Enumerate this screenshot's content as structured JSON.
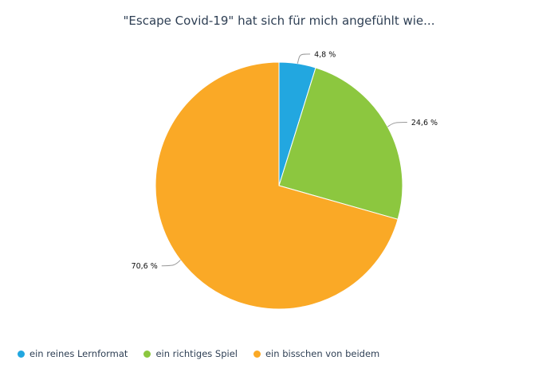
{
  "chart_data": {
    "type": "pie",
    "title": "\"Escape Covid-19\" hat sich für mich angefühlt wie...",
    "categories": [
      "ein reines Lernformat",
      "ein richtiges Spiel",
      "ein bisschen von beidem"
    ],
    "values": [
      4.8,
      24.6,
      70.6
    ],
    "data_labels": [
      "4,8 %",
      "24,6 %",
      "70,6 %"
    ],
    "colors": [
      "#22a7e0",
      "#8cc73f",
      "#faa926"
    ],
    "legend_position": "bottom-left"
  }
}
